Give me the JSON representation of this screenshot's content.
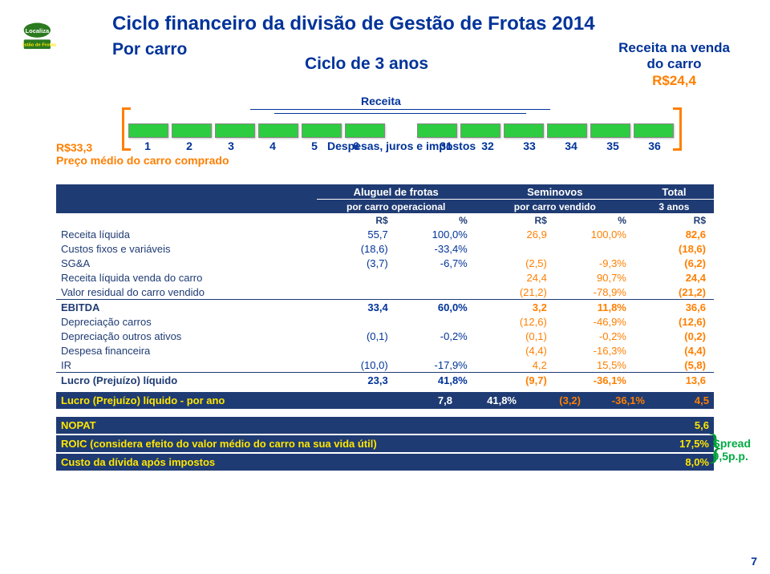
{
  "colors": {
    "brand_blue": "#003399",
    "header_blue": "#1f3b73",
    "brand_green": "#2ecc40",
    "brand_orange": "#ff7f00",
    "brand_yellow": "#ffe600",
    "spread_green": "#009933",
    "bg": "#ffffff"
  },
  "title": "Ciclo financeiro da divisão de Gestão de Frotas 2014",
  "subtitle_left": "Por carro",
  "subtitle_mid": "Ciclo de 3 anos",
  "revenue_box": {
    "l1": "Receita na venda",
    "l2": "do carro",
    "amount": "R$24,4"
  },
  "receita_label": "Receita",
  "despesas_label": "Despesas, juros e impostos",
  "left_price": {
    "amount": "R$33,3",
    "desc": "Preço médio do carro comprado"
  },
  "timeline": {
    "left_months": [
      "1",
      "2",
      "3",
      "4",
      "5",
      "6"
    ],
    "right_months": [
      "31",
      "32",
      "33",
      "34",
      "35",
      "36"
    ]
  },
  "table": {
    "header1": {
      "c0": "",
      "c1": "Aluguel de frotas",
      "c2": "Seminovos",
      "c3": "Total"
    },
    "header2": {
      "c1": "por carro operacional",
      "c2": "por carro vendido",
      "c3": "3 anos"
    },
    "sub": {
      "rs": "R$",
      "pct": "%"
    },
    "rows": [
      {
        "lbl": "Receita líquida",
        "rs1": "55,7",
        "pc1": "100,0%",
        "rs2": "26,9",
        "pc2": "100,0%",
        "tot": "82,6",
        "bold": false
      },
      {
        "lbl": "Custos fixos e variáveis",
        "rs1": "(18,6)",
        "pc1": "-33,4%",
        "rs2": "",
        "pc2": "",
        "tot": "(18,6)",
        "bold": false
      },
      {
        "lbl": "SG&A",
        "rs1": "(3,7)",
        "pc1": "-6,7%",
        "rs2": "(2,5)",
        "pc2": "-9,3%",
        "tot": "(6,2)",
        "bold": false
      },
      {
        "lbl": "Receita líquida venda do carro",
        "rs1": "",
        "pc1": "",
        "rs2": "24,4",
        "pc2": "90,7%",
        "tot": "24,4",
        "bold": false
      },
      {
        "lbl": "Valor residual do carro vendido",
        "rs1": "",
        "pc1": "",
        "rs2": "(21,2)",
        "pc2": "-78,9%",
        "tot": "(21,2)",
        "bold": false,
        "sepBelow": true
      },
      {
        "lbl": "EBITDA",
        "rs1": "33,4",
        "pc1": "60,0%",
        "rs2": "3,2",
        "pc2": "11,8%",
        "tot": "36,6",
        "bold": true
      },
      {
        "lbl": "Depreciação carros",
        "rs1": "",
        "pc1": "",
        "rs2": "(12,6)",
        "pc2": "-46,9%",
        "tot": "(12,6)",
        "bold": false
      },
      {
        "lbl": "Depreciação outros ativos",
        "rs1": "(0,1)",
        "pc1": "-0,2%",
        "rs2": "(0,1)",
        "pc2": "-0,2%",
        "tot": "(0,2)",
        "bold": false
      },
      {
        "lbl": "Despesa financeira",
        "rs1": "",
        "pc1": "",
        "rs2": "(4,4)",
        "pc2": "-16,3%",
        "tot": "(4,4)",
        "bold": false
      },
      {
        "lbl": "IR",
        "rs1": "(10,0)",
        "pc1": "-17,9%",
        "rs2": "4,2",
        "pc2": "15,5%",
        "tot": "(5,8)",
        "bold": false,
        "sepBelow": true
      },
      {
        "lbl": "Lucro (Prejuízo) líquido",
        "rs1": "23,3",
        "pc1": "41,8%",
        "rs2": "(9,7)",
        "pc2": "-36,1%",
        "tot": "13,6",
        "bold": true
      }
    ]
  },
  "band_per_year": {
    "lbl": "Lucro (Prejuízo) líquido - por ano",
    "v1": "7,8",
    "v2": "41,8%",
    "v3": "(3,2)",
    "v4": "-36,1%",
    "v5": "4,5"
  },
  "bands2": {
    "nopat": {
      "lbl": "NOPAT",
      "val": "5,6"
    },
    "roic": {
      "lbl": "ROIC (considera efeito do valor médio do carro na sua vida útil)",
      "val": "17,5%"
    },
    "custo": {
      "lbl": "Custo da dívida após impostos",
      "val": "8,0%"
    }
  },
  "spread": {
    "l1": "Spread",
    "l2": "9,5p.p."
  },
  "page_number": "7"
}
